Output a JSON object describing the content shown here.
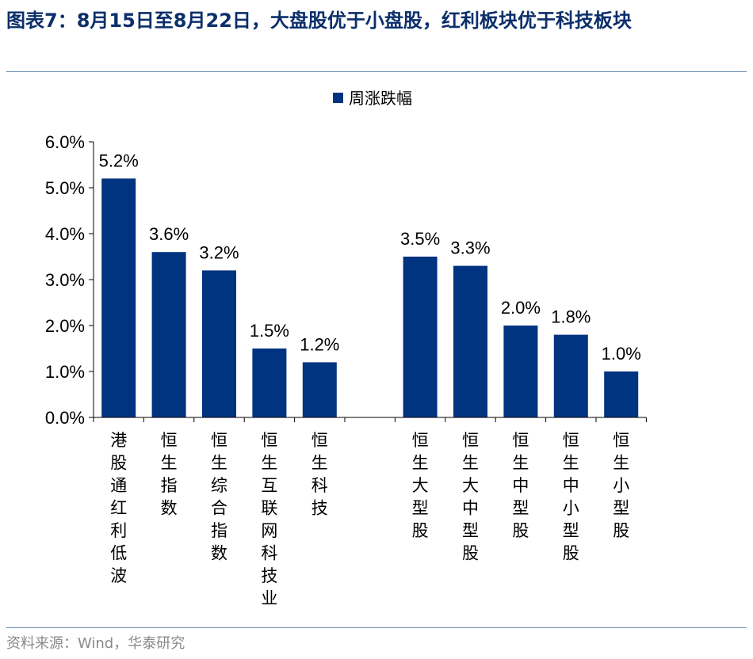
{
  "title": "图表7：8月15日至8月22日，大盘股优于小盘股，红利板块优于科技板块",
  "source": "资料来源：Wind，华泰研究",
  "colors": {
    "bar": "#003380",
    "axis": "#000000"
  },
  "chart_data": {
    "type": "bar",
    "legend": {
      "position": "top",
      "entries": [
        "周涨跌幅"
      ]
    },
    "series": [
      {
        "name": "周涨跌幅",
        "values": [
          5.2,
          3.6,
          3.2,
          1.5,
          1.2,
          3.5,
          3.3,
          2.0,
          1.8,
          1.0
        ]
      }
    ],
    "categories": [
      "港股通红利低波",
      "恒生指数",
      "恒生综合指数",
      "恒生互联网科技业",
      "恒生科技",
      "恒生大型股",
      "恒生大中型股",
      "恒生中型股",
      "恒生中小型股",
      "恒生小型股"
    ],
    "data_labels": [
      "5.2%",
      "3.6%",
      "3.2%",
      "1.5%",
      "1.2%",
      "3.5%",
      "3.3%",
      "2.0%",
      "1.8%",
      "1.0%"
    ],
    "groups": [
      [
        0,
        1,
        2,
        3,
        4
      ],
      [
        5,
        6,
        7,
        8,
        9
      ]
    ],
    "ylim": [
      0,
      6
    ],
    "yticks": [
      "0.0%",
      "1.0%",
      "2.0%",
      "3.0%",
      "4.0%",
      "5.0%",
      "6.0%"
    ],
    "grid": false
  }
}
